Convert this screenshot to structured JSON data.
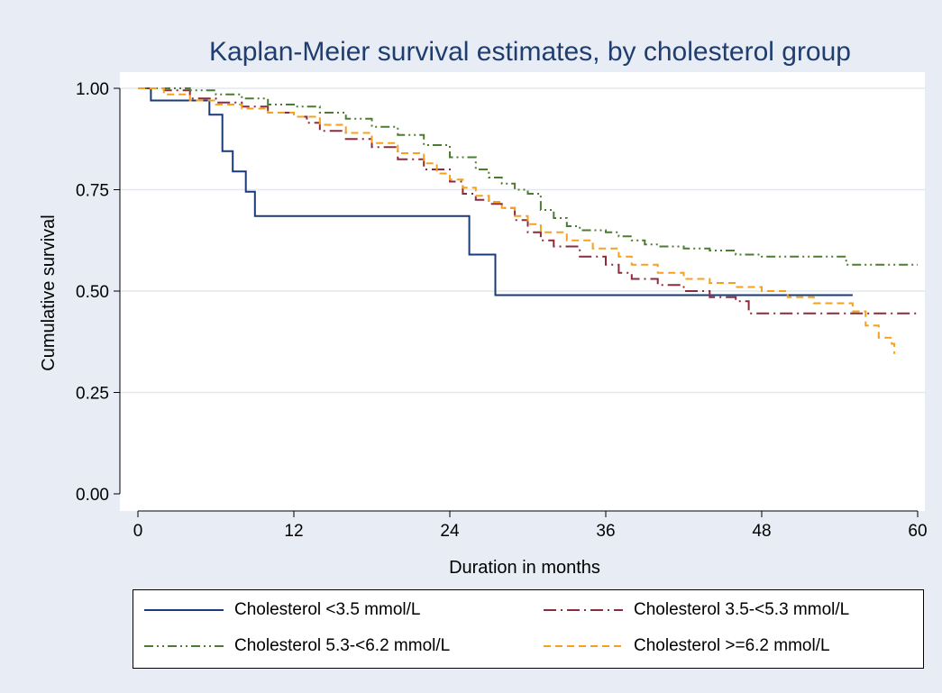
{
  "chart_data": {
    "type": "line",
    "step": true,
    "title": "Kaplan-Meier survival estimates, by cholesterol group",
    "xlabel": "Duration in months",
    "ylabel": "Cumulative survival",
    "xlim": [
      0,
      60
    ],
    "ylim": [
      0,
      1
    ],
    "xticks": [
      0,
      12,
      24,
      36,
      48,
      60
    ],
    "yticks": [
      0,
      0.25,
      0.5,
      0.75,
      1
    ],
    "xtick_labels": [
      "0",
      "12",
      "24",
      "36",
      "48",
      "60"
    ],
    "ytick_labels": [
      "0.00",
      "0.25",
      "0.50",
      "0.75",
      "1.00"
    ],
    "grid": "horizontal",
    "legend_position": "bottom",
    "series": [
      {
        "name": "Cholesterol <3.5 mmol/L",
        "color": "#1a3a7a",
        "dash": "solid",
        "points": [
          [
            0,
            1.0
          ],
          [
            1,
            0.97
          ],
          [
            4,
            0.97
          ],
          [
            5.5,
            0.935
          ],
          [
            6.5,
            0.845
          ],
          [
            7.3,
            0.795
          ],
          [
            8.3,
            0.745
          ],
          [
            9,
            0.685
          ],
          [
            12,
            0.685
          ],
          [
            20,
            0.685
          ],
          [
            25.5,
            0.685
          ],
          [
            25.5,
            0.59
          ],
          [
            27.5,
            0.59
          ],
          [
            27.5,
            0.49
          ],
          [
            40,
            0.49
          ],
          [
            55,
            0.49
          ]
        ]
      },
      {
        "name": "Cholesterol 3.5-<5.3 mmol/L",
        "color": "#8b2c3c",
        "dash": "long-dash",
        "points": [
          [
            0,
            1.0
          ],
          [
            2,
            0.995
          ],
          [
            4,
            0.975
          ],
          [
            6,
            0.965
          ],
          [
            8,
            0.955
          ],
          [
            10,
            0.94
          ],
          [
            12,
            0.93
          ],
          [
            13,
            0.915
          ],
          [
            14,
            0.895
          ],
          [
            16,
            0.875
          ],
          [
            18,
            0.855
          ],
          [
            20,
            0.825
          ],
          [
            22,
            0.8
          ],
          [
            24,
            0.77
          ],
          [
            25,
            0.74
          ],
          [
            26,
            0.725
          ],
          [
            27,
            0.715
          ],
          [
            28,
            0.705
          ],
          [
            29,
            0.675
          ],
          [
            30,
            0.645
          ],
          [
            31,
            0.625
          ],
          [
            32,
            0.61
          ],
          [
            34,
            0.585
          ],
          [
            36,
            0.565
          ],
          [
            37,
            0.545
          ],
          [
            38,
            0.53
          ],
          [
            40,
            0.515
          ],
          [
            42,
            0.5
          ],
          [
            44,
            0.485
          ],
          [
            46,
            0.475
          ],
          [
            47,
            0.445
          ],
          [
            50,
            0.445
          ],
          [
            60,
            0.445
          ]
        ]
      },
      {
        "name": "Cholesterol 5.3-<6.2 mmol/L",
        "color": "#4e7b32",
        "dash": "dash-dot-dot",
        "points": [
          [
            0,
            1.0
          ],
          [
            4,
            0.995
          ],
          [
            6,
            0.985
          ],
          [
            8,
            0.975
          ],
          [
            10,
            0.96
          ],
          [
            12,
            0.955
          ],
          [
            14,
            0.94
          ],
          [
            16,
            0.925
          ],
          [
            18,
            0.905
          ],
          [
            20,
            0.885
          ],
          [
            22,
            0.86
          ],
          [
            24,
            0.83
          ],
          [
            26,
            0.8
          ],
          [
            27,
            0.78
          ],
          [
            28,
            0.765
          ],
          [
            29,
            0.75
          ],
          [
            30,
            0.74
          ],
          [
            31,
            0.7
          ],
          [
            32,
            0.68
          ],
          [
            33,
            0.66
          ],
          [
            34,
            0.65
          ],
          [
            36,
            0.645
          ],
          [
            37,
            0.635
          ],
          [
            38,
            0.625
          ],
          [
            39,
            0.615
          ],
          [
            40,
            0.61
          ],
          [
            42,
            0.605
          ],
          [
            44,
            0.6
          ],
          [
            46,
            0.59
          ],
          [
            48,
            0.585
          ],
          [
            54,
            0.585
          ],
          [
            54.5,
            0.565
          ],
          [
            60,
            0.565
          ]
        ]
      },
      {
        "name": "Cholesterol >=6.2 mmol/L",
        "color": "#f5a01e",
        "dash": "dash",
        "points": [
          [
            0,
            1.0
          ],
          [
            2,
            0.985
          ],
          [
            4,
            0.97
          ],
          [
            6,
            0.96
          ],
          [
            8,
            0.95
          ],
          [
            10,
            0.94
          ],
          [
            12,
            0.93
          ],
          [
            14,
            0.91
          ],
          [
            16,
            0.89
          ],
          [
            18,
            0.865
          ],
          [
            20,
            0.84
          ],
          [
            22,
            0.815
          ],
          [
            23,
            0.79
          ],
          [
            24,
            0.775
          ],
          [
            25,
            0.755
          ],
          [
            26,
            0.735
          ],
          [
            27,
            0.72
          ],
          [
            28,
            0.705
          ],
          [
            29,
            0.685
          ],
          [
            30,
            0.665
          ],
          [
            31,
            0.645
          ],
          [
            33,
            0.625
          ],
          [
            35,
            0.605
          ],
          [
            37,
            0.585
          ],
          [
            38,
            0.565
          ],
          [
            40,
            0.545
          ],
          [
            42,
            0.53
          ],
          [
            44,
            0.52
          ],
          [
            46,
            0.51
          ],
          [
            48,
            0.5
          ],
          [
            50,
            0.485
          ],
          [
            52,
            0.47
          ],
          [
            55,
            0.45
          ],
          [
            56,
            0.415
          ],
          [
            57,
            0.385
          ],
          [
            58,
            0.37
          ],
          [
            58.2,
            0.345
          ]
        ]
      }
    ]
  }
}
